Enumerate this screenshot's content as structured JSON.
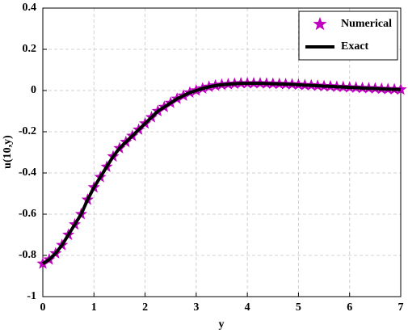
{
  "chart_data": {
    "type": "line",
    "xlabel": "y",
    "ylabel": "u(10,y)",
    "x": [
      0,
      0.125,
      0.25,
      0.375,
      0.5,
      0.625,
      0.75,
      0.875,
      1,
      1.125,
      1.25,
      1.375,
      1.5,
      1.625,
      1.75,
      1.875,
      2,
      2.125,
      2.25,
      2.375,
      2.5,
      2.625,
      2.75,
      2.875,
      3,
      3.125,
      3.25,
      3.375,
      3.5,
      3.625,
      3.75,
      3.875,
      4,
      4.125,
      4.25,
      4.375,
      4.5,
      4.625,
      4.75,
      4.875,
      5,
      5.125,
      5.25,
      5.375,
      5.5,
      5.625,
      5.75,
      5.875,
      6,
      6.125,
      6.25,
      6.375,
      6.5,
      6.625,
      6.75,
      6.875,
      7
    ],
    "series": [
      {
        "name": "Numerical",
        "color": "#c000c0",
        "marker": "star",
        "values": [
          -0.84,
          -0.82,
          -0.79,
          -0.75,
          -0.7,
          -0.65,
          -0.6,
          -0.53,
          -0.47,
          -0.42,
          -0.37,
          -0.32,
          -0.28,
          -0.25,
          -0.22,
          -0.19,
          -0.16,
          -0.13,
          -0.1,
          -0.08,
          -0.06,
          -0.04,
          -0.025,
          -0.01,
          0,
          0.01,
          0.018,
          0.024,
          0.028,
          0.031,
          0.033,
          0.035,
          0.035,
          0.035,
          0.035,
          0.034,
          0.033,
          0.032,
          0.031,
          0.03,
          0.028,
          0.026,
          0.025,
          0.023,
          0.021,
          0.02,
          0.018,
          0.017,
          0.015,
          0.014,
          0.012,
          0.011,
          0.01,
          0.008,
          0.007,
          0.006,
          0.005
        ]
      },
      {
        "name": "Exact",
        "color": "#000000",
        "marker": "none",
        "values": [
          -0.84,
          -0.82,
          -0.79,
          -0.75,
          -0.7,
          -0.65,
          -0.6,
          -0.53,
          -0.47,
          -0.42,
          -0.37,
          -0.32,
          -0.28,
          -0.25,
          -0.22,
          -0.19,
          -0.16,
          -0.13,
          -0.1,
          -0.08,
          -0.06,
          -0.04,
          -0.025,
          -0.01,
          0,
          0.01,
          0.018,
          0.024,
          0.028,
          0.031,
          0.033,
          0.035,
          0.035,
          0.035,
          0.035,
          0.034,
          0.033,
          0.032,
          0.031,
          0.03,
          0.028,
          0.026,
          0.025,
          0.023,
          0.021,
          0.02,
          0.018,
          0.017,
          0.015,
          0.014,
          0.012,
          0.011,
          0.01,
          0.008,
          0.007,
          0.006,
          0.005
        ]
      }
    ],
    "xlim": [
      0,
      7
    ],
    "xticks": [
      0,
      1,
      2,
      3,
      4,
      5,
      6,
      7
    ],
    "ylim": [
      -1,
      0.4
    ],
    "yticks": [
      -1,
      -0.8,
      -0.6,
      -0.4,
      -0.2,
      0,
      0.2,
      0.4
    ],
    "grid": true,
    "legend": "upper right"
  }
}
